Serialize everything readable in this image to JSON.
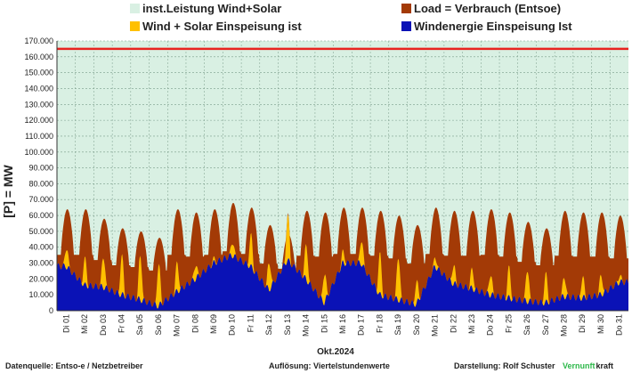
{
  "chart_data": {
    "type": "area",
    "xlabel": "Okt.2024",
    "ylabel": "[P] = MW",
    "ylim": [
      0,
      170000
    ],
    "yticks": [
      "0",
      "10.000",
      "20.000",
      "30.000",
      "40.000",
      "50.000",
      "60.000",
      "70.000",
      "80.000",
      "90.000",
      "100.000",
      "110.000",
      "120.000",
      "130.000",
      "140.000",
      "150.000",
      "160.000",
      "170.000"
    ],
    "grid": true,
    "legend_position": "top",
    "categories": [
      "Di 01",
      "Mi 02",
      "Do 03",
      "Fr 04",
      "Sa 05",
      "So 06",
      "Mo 07",
      "Di 08",
      "Mi 09",
      "Do 10",
      "Fr 11",
      "Sa 12",
      "So 13",
      "Mo 14",
      "Di 15",
      "Mi 16",
      "Do 17",
      "Fr 18",
      "Sa 19",
      "So 20",
      "Mo 21",
      "Di 22",
      "Mi 23",
      "Do 24",
      "Fr 25",
      "Sa 26",
      "So 27",
      "Mo 28",
      "Di 29",
      "Mi 30",
      "Do 31"
    ],
    "series": [
      {
        "name": "inst.Leistung Wind+Solar",
        "color": "#d9f0e3",
        "level": 165000,
        "line_color": "#e8231f"
      },
      {
        "name": "Load =  Verbrauch (Entsoe)",
        "color": "#a33a06",
        "daily_peak": [
          64,
          64,
          58,
          52,
          50,
          46,
          64,
          62,
          64,
          68,
          65,
          54,
          48,
          63,
          62,
          65,
          65,
          63,
          60,
          54,
          65,
          63,
          63,
          64,
          62,
          56,
          52,
          63,
          62,
          62,
          60
        ]
      },
      {
        "name": "Wind + Solar Einspeisung ist",
        "color": "#ffc000",
        "daily_peak": [
          34,
          32,
          32,
          33,
          33,
          34,
          34,
          34,
          35,
          40,
          40,
          40,
          54,
          34,
          36,
          37,
          35,
          34,
          33,
          30,
          28,
          27,
          24,
          22,
          26,
          26,
          25,
          21,
          22,
          26,
          22
        ]
      },
      {
        "name": "Windenergie Einspeisung Ist",
        "color": "#0a12b6",
        "daily_level": [
          28,
          16,
          15,
          10,
          7,
          3,
          12,
          20,
          30,
          35,
          28,
          13,
          32,
          20,
          5,
          30,
          30,
          10,
          7,
          4,
          28,
          17,
          14,
          10,
          8,
          6,
          5,
          9,
          8,
          10,
          18
        ]
      }
    ],
    "units_note": "daily_peak and daily_level in thousands of MW"
  },
  "legend": {
    "items": [
      {
        "label": "inst.Leistung Wind+Solar",
        "color": "#d9f0e3"
      },
      {
        "label": "Load =  Verbrauch (Entsoe)",
        "color": "#a33a06"
      },
      {
        "label": "Wind + Solar Einspeisung ist",
        "color": "#ffc000"
      },
      {
        "label": "Windenergie Einspeisung Ist",
        "color": "#0a12b6"
      }
    ]
  },
  "footer": {
    "source": "Datenquelle:  Entso-e  / Netzbetreiber",
    "resolution": "Auflösung: Viertelstundenwerte",
    "author": "Darstellung:  Rolf Schuster",
    "brand_green": "Vernunft",
    "brand_dark": "kraft"
  }
}
